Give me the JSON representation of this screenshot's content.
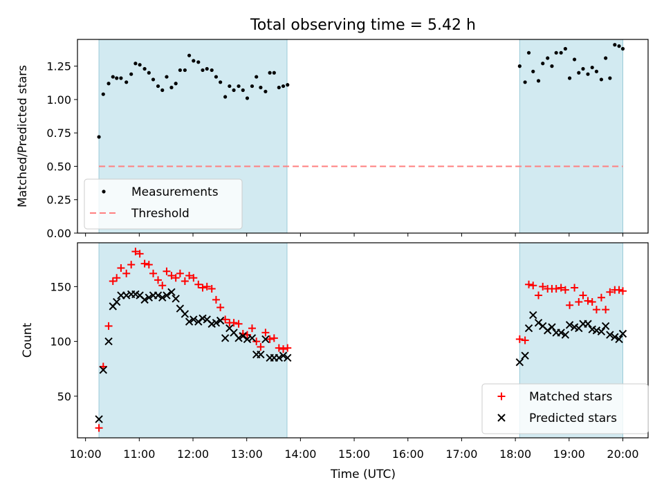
{
  "chart_data": {
    "title": "Total observing time = 5.42 h",
    "xlabel": "Time (UTC)",
    "x_ticks": [
      "10:00",
      "11:00",
      "12:00",
      "13:00",
      "14:00",
      "15:00",
      "16:00",
      "17:00",
      "18:00",
      "19:00",
      "20:00"
    ],
    "x_range_hours": [
      9.85,
      20.47
    ],
    "observing_windows": [
      {
        "start_hours": 10.25,
        "end_hours": 13.75
      },
      {
        "start_hours": 18.08,
        "end_hours": 20.0
      }
    ],
    "colors": {
      "window": "#add8e6",
      "measurements": "#000000",
      "threshold": "#ff7f7f",
      "matched": "#ff0000",
      "predicted": "#000000"
    },
    "panels": [
      {
        "type": "scatter",
        "ylabel": "Matched/Predicted stars",
        "ylim": [
          0.0,
          1.45
        ],
        "y_ticks": [
          "0.00",
          "0.25",
          "0.50",
          "0.75",
          "1.00",
          "1.25"
        ],
        "y_tick_values": [
          0.0,
          0.25,
          0.5,
          0.75,
          1.0,
          1.25
        ],
        "legend_position": "lower-left",
        "series": [
          {
            "name": "Measurements",
            "marker": "dot",
            "x": [
              10.25,
              10.33,
              10.43,
              10.51,
              10.58,
              10.66,
              10.76,
              10.85,
              10.93,
              11.01,
              11.1,
              11.18,
              11.26,
              11.35,
              11.43,
              11.51,
              11.6,
              11.68,
              11.76,
              11.85,
              11.93,
              12.01,
              12.1,
              12.18,
              12.26,
              12.35,
              12.43,
              12.51,
              12.6,
              12.68,
              12.76,
              12.85,
              12.93,
              13.01,
              13.1,
              13.18,
              13.26,
              13.35,
              13.43,
              13.51,
              13.6,
              13.68,
              13.76,
              18.08,
              18.18,
              18.25,
              18.33,
              18.43,
              18.51,
              18.6,
              18.68,
              18.76,
              18.85,
              18.93,
              19.01,
              19.1,
              19.18,
              19.26,
              19.35,
              19.43,
              19.51,
              19.6,
              19.68,
              19.76,
              19.85,
              19.93,
              20.0
            ],
            "y": [
              0.72,
              1.04,
              1.12,
              1.17,
              1.16,
              1.16,
              1.13,
              1.19,
              1.27,
              1.26,
              1.23,
              1.2,
              1.15,
              1.1,
              1.07,
              1.17,
              1.09,
              1.12,
              1.22,
              1.22,
              1.33,
              1.29,
              1.28,
              1.22,
              1.23,
              1.22,
              1.17,
              1.13,
              1.02,
              1.1,
              1.07,
              1.1,
              1.07,
              1.01,
              1.1,
              1.17,
              1.09,
              1.06,
              1.2,
              1.2,
              1.09,
              1.1,
              1.11,
              1.25,
              1.13,
              1.35,
              1.21,
              1.14,
              1.27,
              1.31,
              1.25,
              1.35,
              1.35,
              1.38,
              1.16,
              1.3,
              1.2,
              1.23,
              1.19,
              1.24,
              1.21,
              1.15,
              1.31,
              1.16,
              1.41,
              1.4,
              1.38
            ]
          },
          {
            "name": "Threshold",
            "marker": "dashed-line",
            "y": 0.5
          }
        ]
      },
      {
        "type": "scatter",
        "ylabel": "Count",
        "ylim": [
          12,
          190
        ],
        "y_ticks": [
          "50",
          "100",
          "150"
        ],
        "y_tick_values": [
          50,
          100,
          150
        ],
        "legend_position": "lower-right",
        "series": [
          {
            "name": "Matched stars",
            "marker": "plus",
            "x": [
              10.25,
              10.33,
              10.43,
              10.51,
              10.58,
              10.66,
              10.76,
              10.85,
              10.93,
              11.01,
              11.1,
              11.18,
              11.26,
              11.35,
              11.43,
              11.51,
              11.6,
              11.68,
              11.76,
              11.85,
              11.93,
              12.01,
              12.1,
              12.18,
              12.26,
              12.35,
              12.43,
              12.51,
              12.6,
              12.68,
              12.76,
              12.85,
              12.93,
              13.01,
              13.1,
              13.18,
              13.26,
              13.35,
              13.43,
              13.51,
              13.6,
              13.68,
              13.76,
              18.08,
              18.18,
              18.25,
              18.33,
              18.43,
              18.51,
              18.6,
              18.68,
              18.76,
              18.85,
              18.93,
              19.01,
              19.1,
              19.18,
              19.26,
              19.35,
              19.43,
              19.51,
              19.6,
              19.68,
              19.76,
              19.85,
              19.93,
              20.0
            ],
            "y": [
              21,
              77,
              114,
              155,
              158,
              167,
              162,
              170,
              182,
              180,
              171,
              170,
              162,
              156,
              151,
              164,
              160,
              158,
              162,
              155,
              160,
              158,
              152,
              149,
              150,
              148,
              138,
              131,
              120,
              117,
              117,
              116,
              107,
              106,
              112,
              100,
              95,
              108,
              102,
              103,
              94,
              93,
              94,
              102,
              101,
              152,
              151,
              142,
              150,
              148,
              148,
              148,
              149,
              147,
              133,
              149,
              136,
              142,
              137,
              136,
              129,
              140,
              129,
              145,
              147,
              147,
              146
            ]
          },
          {
            "name": "Predicted stars",
            "marker": "x",
            "x": [
              10.25,
              10.33,
              10.43,
              10.51,
              10.58,
              10.66,
              10.76,
              10.85,
              10.93,
              11.01,
              11.1,
              11.18,
              11.26,
              11.35,
              11.43,
              11.51,
              11.6,
              11.68,
              11.76,
              11.85,
              11.93,
              12.01,
              12.1,
              12.18,
              12.26,
              12.35,
              12.43,
              12.51,
              12.6,
              12.68,
              12.76,
              12.85,
              12.93,
              13.01,
              13.1,
              13.18,
              13.26,
              13.35,
              13.43,
              13.51,
              13.6,
              13.68,
              13.76,
              18.08,
              18.18,
              18.25,
              18.33,
              18.43,
              18.51,
              18.6,
              18.68,
              18.76,
              18.85,
              18.93,
              19.01,
              19.1,
              19.18,
              19.26,
              19.35,
              19.43,
              19.51,
              19.6,
              19.68,
              19.76,
              19.85,
              19.93,
              20.0
            ],
            "y": [
              29,
              74,
              100,
              132,
              136,
              142,
              142,
              143,
              143,
              142,
              138,
              140,
              142,
              142,
              140,
              142,
              145,
              139,
              130,
              125,
              118,
              120,
              118,
              121,
              120,
              116,
              117,
              119,
              103,
              112,
              108,
              103,
              105,
              102,
              103,
              88,
              88,
              102,
              85,
              85,
              85,
              87,
              85,
              81,
              87,
              112,
              124,
              117,
              114,
              110,
              113,
              108,
              108,
              106,
              115,
              113,
              112,
              116,
              116,
              111,
              110,
              109,
              114,
              106,
              104,
              102,
              107
            ]
          }
        ]
      }
    ]
  }
}
